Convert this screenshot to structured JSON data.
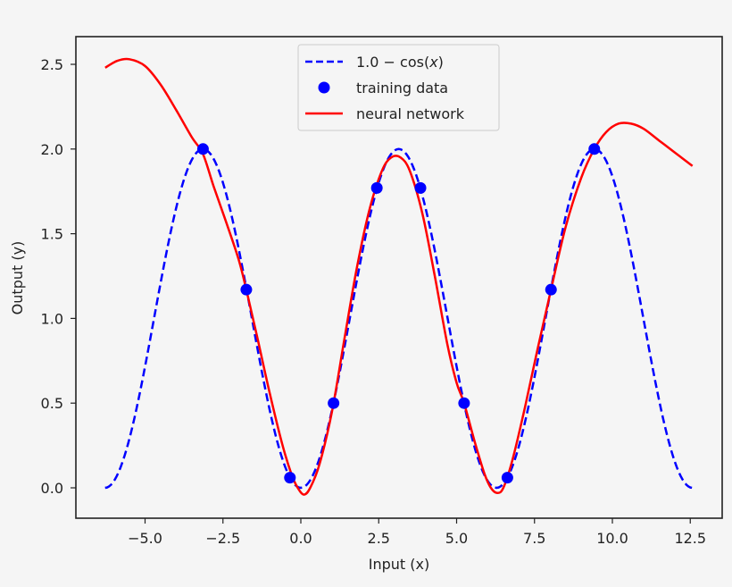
{
  "chart_data": {
    "type": "line",
    "title": "",
    "xlabel": "Input (x)",
    "ylabel": "Output (y)",
    "xlim": [
      -7.0,
      13.6
    ],
    "ylim": [
      -0.18,
      2.65
    ],
    "grid": false,
    "legend_position": "upper center",
    "xticks": [
      -5.0,
      -2.5,
      0.0,
      2.5,
      5.0,
      7.5,
      10.0,
      12.5
    ],
    "xtick_labels": [
      "−5.0",
      "−2.5",
      "0.0",
      "2.5",
      "5.0",
      "7.5",
      "10.0",
      "12.5"
    ],
    "yticks": [
      0.0,
      0.5,
      1.0,
      1.5,
      2.0,
      2.5
    ],
    "ytick_labels": [
      "0.0",
      "0.5",
      "1.0",
      "1.5",
      "2.0",
      "2.5"
    ],
    "series": [
      {
        "name": "1.0 − cos(x)",
        "kind": "function",
        "function": "1 - cos(x)",
        "x_range": [
          -6.2832,
          12.5664
        ],
        "color": "#0000ff",
        "style": "dashed"
      },
      {
        "name": "training data",
        "kind": "scatter",
        "color": "#0000ff",
        "x": [
          -3.14,
          -1.75,
          -0.35,
          1.05,
          2.44,
          3.84,
          5.24,
          6.63,
          8.03,
          9.42
        ],
        "y": [
          2.0,
          1.17,
          0.06,
          0.5,
          1.77,
          1.77,
          0.5,
          0.06,
          1.17,
          2.0
        ]
      },
      {
        "name": "neural network",
        "kind": "line",
        "color": "#ff0000",
        "style": "solid",
        "x": [
          -6.28,
          -5.9,
          -5.5,
          -5.0,
          -4.5,
          -4.0,
          -3.5,
          -3.14,
          -2.8,
          -2.4,
          -2.0,
          -1.75,
          -1.4,
          -1.0,
          -0.6,
          -0.3,
          -0.1,
          0.1,
          0.3,
          0.6,
          1.0,
          1.4,
          1.8,
          2.2,
          2.6,
          2.9,
          3.2,
          3.5,
          3.9,
          4.3,
          4.7,
          5.0,
          5.24,
          5.6,
          5.9,
          6.1,
          6.3,
          6.5,
          6.8,
          7.2,
          7.6,
          8.03,
          8.5,
          9.0,
          9.42,
          9.8,
          10.2,
          10.6,
          11.0,
          11.5,
          12.0,
          12.57
        ],
        "y": [
          2.48,
          2.52,
          2.53,
          2.49,
          2.38,
          2.23,
          2.07,
          1.97,
          1.78,
          1.57,
          1.35,
          1.17,
          0.89,
          0.56,
          0.26,
          0.08,
          0.0,
          -0.04,
          0.0,
          0.14,
          0.45,
          0.88,
          1.3,
          1.64,
          1.87,
          1.95,
          1.95,
          1.87,
          1.62,
          1.25,
          0.85,
          0.62,
          0.5,
          0.26,
          0.08,
          0.0,
          -0.03,
          0.0,
          0.17,
          0.48,
          0.82,
          1.17,
          1.54,
          1.83,
          2.0,
          2.1,
          2.15,
          2.15,
          2.12,
          2.05,
          1.98,
          1.9
        ]
      }
    ]
  },
  "legend": {
    "items": [
      {
        "label": "1.0 − cos(",
        "label_italic": "x",
        "label_end": ")",
        "marker": "dashed-line",
        "color": "#0000ff"
      },
      {
        "label": "training data",
        "marker": "circle",
        "color": "#0000ff"
      },
      {
        "label": "neural network",
        "marker": "solid-line",
        "color": "#ff0000"
      }
    ]
  },
  "colors": {
    "background": "#f5f5f5",
    "axes": "#222222",
    "cos_curve": "#0000ff",
    "points": "#0000ff",
    "network": "#ff0000"
  }
}
